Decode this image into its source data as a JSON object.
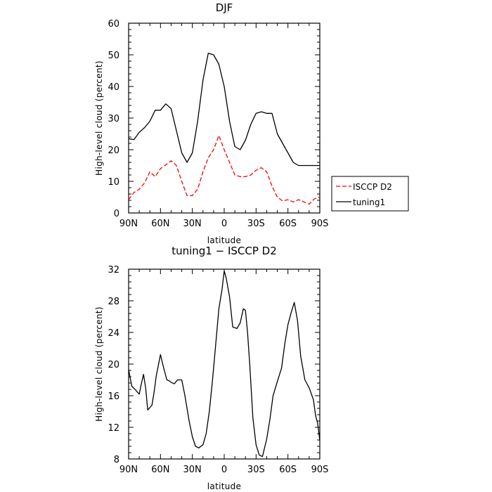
{
  "chart_data": [
    {
      "type": "line",
      "title": "DJF",
      "xlabel": "latitude",
      "ylabel": "High-level cloud (percent)",
      "x": [
        -90,
        -85,
        -80,
        -75,
        -70,
        -65,
        -60,
        -55,
        -50,
        -45,
        -40,
        -35,
        -30,
        -25,
        -20,
        -15,
        -10,
        -5,
        0,
        5,
        10,
        15,
        20,
        25,
        30,
        35,
        40,
        45,
        50,
        55,
        60,
        65,
        70,
        75,
        80,
        85,
        90
      ],
      "xlim": [
        -90,
        90
      ],
      "ylim": [
        0,
        60
      ],
      "xticks": [
        -90,
        -60,
        -30,
        0,
        30,
        60,
        90
      ],
      "xtick_labels": [
        "90N",
        "60N",
        "30N",
        "0",
        "30S",
        "60S",
        "90S"
      ],
      "yticks": [
        0,
        10,
        20,
        30,
        40,
        50,
        60
      ],
      "ytick_labels": [
        "0",
        "10",
        "20",
        "30",
        "40",
        "50",
        "60"
      ],
      "legend_position": "right",
      "series": [
        {
          "name": "ISCCP D2",
          "color": "#ff0000",
          "dash": "dashed",
          "values": [
            4.2,
            6.5,
            7.5,
            9.5,
            13,
            11.5,
            14,
            15.2,
            16.5,
            15,
            10,
            5.5,
            5.5,
            7.5,
            13,
            17.5,
            20,
            24.5,
            20,
            16,
            12,
            11.5,
            11.5,
            12,
            13.5,
            14.3,
            13,
            8.5,
            5,
            3.8,
            4.2,
            3.5,
            4.2,
            3.5,
            2.8,
            4.5,
            5
          ]
        },
        {
          "name": "tuning1",
          "color": "#000000",
          "dash": "solid",
          "values": [
            23.5,
            23.2,
            25.5,
            27,
            29,
            32.5,
            32.5,
            34.5,
            33,
            26,
            19,
            16,
            19,
            29,
            42,
            50.5,
            50,
            47,
            40,
            29,
            21,
            20,
            23,
            28,
            31.5,
            32,
            31.5,
            31.5,
            25,
            22,
            19,
            16,
            15,
            15,
            15,
            15,
            15
          ]
        }
      ]
    },
    {
      "type": "line",
      "title": "tuning1 − ISCCP D2",
      "xlabel": "latitude",
      "ylabel": "High-level cloud (percent)",
      "x": [
        -90,
        -87,
        -84,
        -80,
        -78,
        -76,
        -74,
        -72,
        -68,
        -66,
        -64,
        -60,
        -57,
        -54,
        -52,
        -50,
        -47,
        -44,
        -40,
        -37,
        -33,
        -30,
        -27,
        -24,
        -20,
        -17,
        -14,
        -11,
        -8,
        -5,
        -2,
        0,
        2,
        5,
        8,
        12,
        15,
        18,
        20,
        22,
        24,
        27,
        30,
        33,
        36,
        40,
        43,
        46,
        50,
        54,
        57,
        60,
        63,
        66,
        69,
        72,
        76,
        80,
        84,
        86,
        88,
        90
      ],
      "xlim": [
        -90,
        90
      ],
      "ylim": [
        8,
        32
      ],
      "xticks": [
        -90,
        -60,
        -30,
        0,
        30,
        60,
        90
      ],
      "xtick_labels": [
        "90N",
        "60N",
        "30N",
        "0",
        "30S",
        "60S",
        "90S"
      ],
      "yticks": [
        8,
        12,
        16,
        20,
        24,
        28,
        32
      ],
      "ytick_labels": [
        "8",
        "12",
        "16",
        "20",
        "24",
        "28",
        "32"
      ],
      "series": [
        {
          "color": "#000000",
          "dash": "solid",
          "values": [
            19.3,
            17.2,
            16.8,
            16.2,
            17.5,
            18.7,
            17,
            14.2,
            14.8,
            16.5,
            18.5,
            21.2,
            19.5,
            18,
            17.9,
            17.7,
            17.5,
            18,
            18,
            16,
            12.8,
            10.8,
            9.6,
            9.4,
            9.8,
            11.2,
            14,
            18,
            22.5,
            27,
            29.5,
            31.8,
            30.8,
            28.5,
            24.7,
            24.5,
            25.2,
            27,
            26.8,
            24,
            20,
            13.2,
            9.8,
            8.5,
            8.3,
            10.5,
            13,
            16,
            17.8,
            19.5,
            22.5,
            25,
            26.5,
            27.8,
            25.5,
            21,
            18,
            17,
            15.5,
            13.5,
            12.5,
            10.3
          ]
        }
      ]
    }
  ]
}
